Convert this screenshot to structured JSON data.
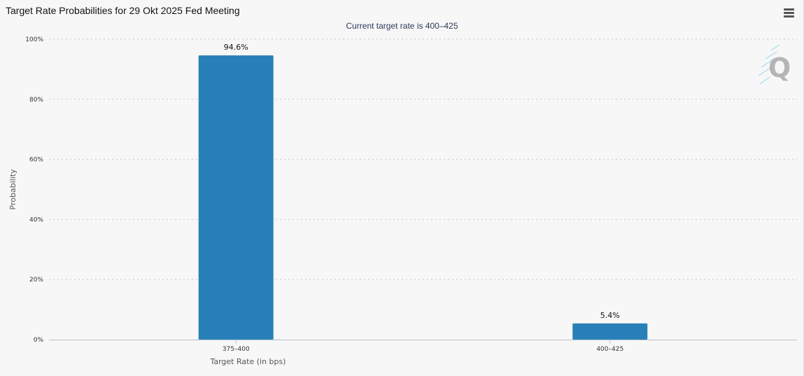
{
  "header": {
    "title": "Target Rate Probabilities for 29 Okt 2025 Fed Meeting",
    "subtitle": "Current target rate is 400–425",
    "menu_icon": "hamburger-menu-icon",
    "watermark_icon": "quikstrike-q-logo"
  },
  "colors": {
    "bar": "#2980b9",
    "grid": "#c8c8c8",
    "axis": "#b8bfd0",
    "background": "#f7f7f7"
  },
  "chart_data": {
    "type": "bar",
    "title": "Target Rate Probabilities for 29 Okt 2025 Fed Meeting",
    "subtitle": "Current target rate is 400–425",
    "categories": [
      "375–400",
      "400–425"
    ],
    "values": [
      94.6,
      5.4
    ],
    "data_labels": [
      "94.6%",
      "5.4%"
    ],
    "xlabel": "Target Rate (in bps)",
    "ylabel": "Probability",
    "ylim": [
      0,
      100
    ],
    "yticks": [
      0,
      20,
      40,
      60,
      80,
      100
    ],
    "ytick_labels": [
      "0%",
      "20%",
      "40%",
      "60%",
      "80%",
      "100%"
    ],
    "grid": true,
    "legend": "none"
  }
}
